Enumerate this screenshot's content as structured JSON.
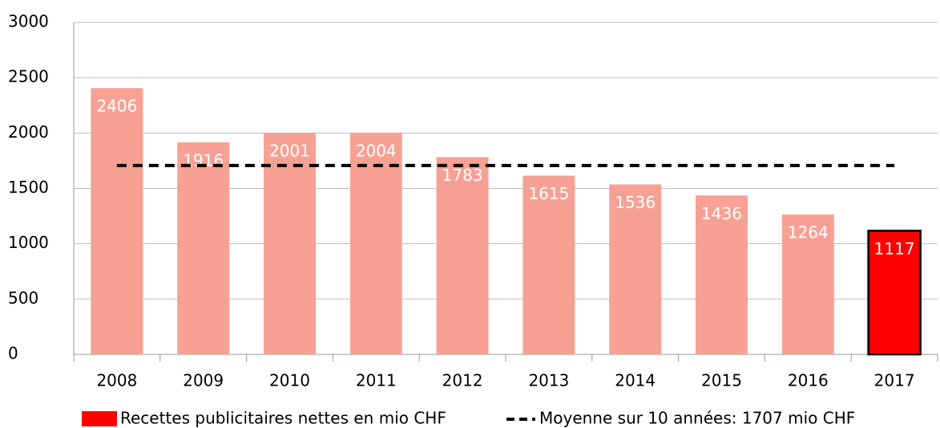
{
  "chart_data": {
    "type": "bar",
    "categories": [
      "2008",
      "2009",
      "2010",
      "2011",
      "2012",
      "2013",
      "2014",
      "2015",
      "2016",
      "2017"
    ],
    "series": [
      {
        "name": "Recettes publicitaires nettes en mio CHF",
        "color": "#ff0000",
        "values": [
          2406,
          1916,
          2001,
          2004,
          1783,
          1615,
          1536,
          1436,
          1264,
          1117
        ]
      }
    ],
    "colors": [
      "#f7a195",
      "#f7a195",
      "#f7a195",
      "#f7a195",
      "#f7a195",
      "#f7a195",
      "#f7a195",
      "#f7a195",
      "#f7a195",
      "#ff0000"
    ],
    "edgecolors": [
      null,
      null,
      null,
      null,
      null,
      null,
      null,
      null,
      null,
      "#000000"
    ],
    "average": {
      "name": "Moyenne sur 10 années: 1707 mio CHF",
      "value": 1707,
      "color": "#000000"
    },
    "ylim": [
      0,
      3000
    ],
    "yticks": [
      0,
      500,
      1000,
      1500,
      2000,
      2500,
      3000
    ],
    "grid": true,
    "legend": "bottom"
  }
}
